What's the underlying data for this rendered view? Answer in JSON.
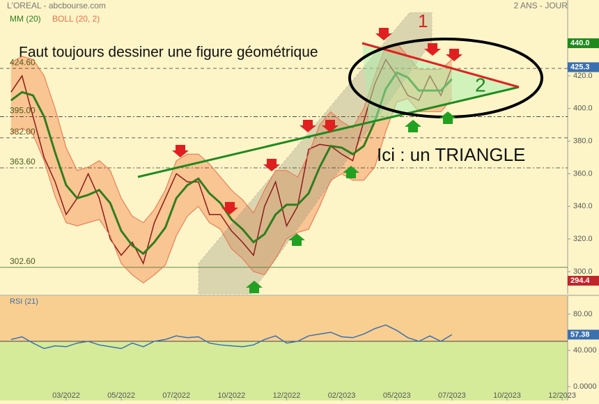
{
  "chart_data": [
    {
      "type": "line",
      "title": "L'OREAL - abcbourse.com",
      "subtitle": "2 ANS - JOUR",
      "x": [
        0,
        0.2,
        0.4,
        0.6,
        0.8,
        1,
        1.2,
        1.4,
        1.6,
        1.8,
        2,
        2.2,
        2.4,
        2.6,
        2.8,
        3,
        3.2,
        3.4,
        3.6,
        3.8,
        4,
        4.2,
        4.4,
        4.6,
        4.8,
        5,
        5.2,
        5.4,
        5.6,
        5.8,
        6,
        6.2,
        6.4,
        6.6,
        6.8,
        7,
        7.2,
        7.4,
        7.6,
        7.8,
        8
      ],
      "xlim": [
        -0.2,
        10.1
      ],
      "ylim": [
        286.3,
        466.5
      ],
      "yticks": [
        {
          "value": 300,
          "label": "300.0"
        },
        {
          "value": 320,
          "label": "320.0"
        },
        {
          "value": 340,
          "label": "340.0"
        },
        {
          "value": 360,
          "label": "360.0"
        },
        {
          "value": 380,
          "label": "380.0"
        },
        {
          "value": 400,
          "label": "400.0"
        },
        {
          "value": 420,
          "label": "420.0"
        }
      ],
      "series": [
        {
          "color": "#8b1a1a",
          "values": [
            410,
            420,
            395,
            370,
            355,
            335,
            345,
            360,
            345,
            320,
            310,
            318,
            305,
            330,
            345,
            360,
            355,
            355,
            335,
            335,
            325,
            318,
            310,
            340,
            355,
            328,
            340,
            375,
            378,
            377,
            372,
            368,
            392,
            415,
            430,
            420,
            408,
            405,
            420,
            408,
            425.3
          ]
        },
        {
          "name": "MM (20)",
          "color": "#2e7d1e",
          "values": [
            405,
            410,
            408,
            395,
            373,
            353,
            345,
            347,
            350,
            342,
            325,
            316,
            311,
            318,
            327,
            345,
            353,
            357,
            348,
            342,
            332,
            326,
            318,
            323,
            335,
            341,
            341,
            348,
            364,
            377,
            376,
            372,
            377,
            392,
            412,
            422,
            419,
            411,
            411,
            411,
            418
          ]
        },
        {
          "name": "BOLL (20, 2)",
          "color": "#e8704a",
          "upper": [
            428,
            432,
            430,
            420,
            400,
            376,
            362,
            364,
            368,
            362,
            345,
            334,
            330,
            338,
            350,
            368,
            372,
            372,
            366,
            358,
            350,
            344,
            336,
            350,
            362,
            362,
            358,
            372,
            390,
            398,
            392,
            388,
            400,
            420,
            438,
            440,
            432,
            424,
            424,
            424,
            430
          ],
          "lower": [
            384,
            388,
            384,
            368,
            346,
            330,
            328,
            330,
            332,
            322,
            305,
            298,
            293,
            298,
            304,
            322,
            334,
            340,
            330,
            326,
            314,
            308,
            300,
            298,
            308,
            320,
            324,
            326,
            340,
            356,
            360,
            356,
            356,
            364,
            386,
            404,
            406,
            398,
            398,
            398,
            406
          ]
        }
      ],
      "levels": [
        {
          "value": 424.6,
          "label": "424.60"
        },
        {
          "value": 395,
          "label": "395.00"
        },
        {
          "value": 382,
          "label": "382.00"
        },
        {
          "value": 363.6,
          "label": "363.60"
        },
        {
          "value": 302.6,
          "label": "302.60"
        }
      ],
      "badges": [
        {
          "value": 440,
          "label": "440.0",
          "color": "#1e8a1e"
        },
        {
          "value": 425.3,
          "label": "425.3",
          "color": "#3a6fb0"
        },
        {
          "value": 294.4,
          "label": "294.4",
          "color": "#c0262c"
        }
      ],
      "annotations": [
        "Faut toujours dessiner une figure géométrique",
        "Ici : un TRIANGLE",
        "1",
        "2"
      ]
    },
    {
      "type": "line",
      "title": "RSI (21)",
      "x": [
        0,
        0.2,
        0.4,
        0.6,
        0.8,
        1,
        1.2,
        1.4,
        1.6,
        1.8,
        2,
        2.2,
        2.4,
        2.6,
        2.8,
        3,
        3.2,
        3.4,
        3.6,
        3.8,
        4,
        4.2,
        4.4,
        4.6,
        4.8,
        5,
        5.2,
        5.4,
        5.6,
        5.8,
        6,
        6.2,
        6.4,
        6.6,
        6.8,
        7,
        7.2,
        7.4,
        7.6,
        7.8,
        8
      ],
      "xlim": [
        -0.2,
        10.1
      ],
      "xticks": [
        {
          "value": 1,
          "label": "03/2022"
        },
        {
          "value": 2,
          "label": "05/2022"
        },
        {
          "value": 3,
          "label": "07/2022"
        },
        {
          "value": 4,
          "label": "10/2022"
        },
        {
          "value": 5,
          "label": "12/2022"
        },
        {
          "value": 6,
          "label": "02/2023"
        },
        {
          "value": 7,
          "label": "05/2023"
        },
        {
          "value": 8,
          "label": "07/2023"
        },
        {
          "value": 9,
          "label": "10/2023"
        },
        {
          "value": 10,
          "label": "12/2023"
        }
      ],
      "ylim": [
        -15.4,
        100
      ],
      "yticks": [
        {
          "value": 0,
          "label": "0.0000"
        },
        {
          "value": 40,
          "label": "40.000"
        },
        {
          "value": 80,
          "label": "80.00"
        }
      ],
      "midline": 50,
      "series": [
        {
          "color": "#3a6fb0",
          "values": [
            52,
            55,
            48,
            42,
            45,
            44,
            48,
            50,
            46,
            44,
            42,
            48,
            44,
            50,
            52,
            56,
            54,
            55,
            48,
            46,
            45,
            44,
            46,
            52,
            56,
            48,
            50,
            56,
            58,
            60,
            55,
            54,
            58,
            64,
            68,
            62,
            54,
            50,
            56,
            50,
            57.38
          ]
        }
      ],
      "badges": [
        {
          "value": 57.38,
          "label": "57.38",
          "color": "#3a6fb0"
        }
      ]
    }
  ]
}
